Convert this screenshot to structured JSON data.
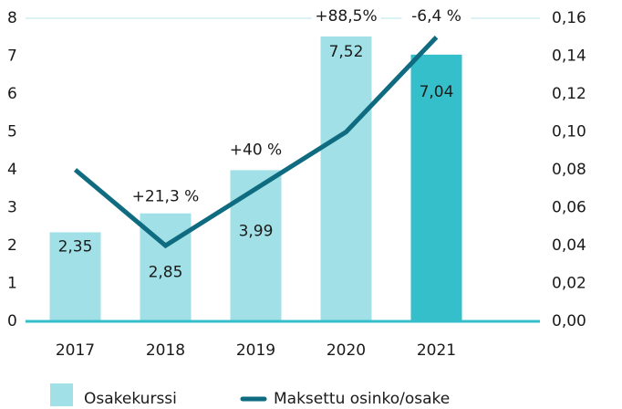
{
  "chart_data": {
    "type": "bar",
    "categories": [
      "2017",
      "2018",
      "2019",
      "2020",
      "2021"
    ],
    "series": [
      {
        "name": "Osakekurssi",
        "type": "bar",
        "color": "#a0e0e6",
        "highlight_color": "#35bfcb",
        "values": [
          2.35,
          2.85,
          3.99,
          7.52,
          7.04
        ],
        "value_labels": [
          "2,35",
          "2,85",
          "3,99",
          "7,52",
          "7,04"
        ]
      },
      {
        "name": "Maksettu osinko/osake",
        "type": "line",
        "axis": "y2",
        "color": "#0e6b80",
        "values": [
          0.08,
          0.04,
          0.07,
          0.1,
          0.15
        ]
      }
    ],
    "changes": [
      null,
      "+21,3 %",
      "+40 %",
      "+88,5%",
      "-6,4 %"
    ],
    "ylim": [
      0,
      8
    ],
    "yticks": [
      0,
      1,
      2,
      3,
      4,
      5,
      6,
      7,
      8
    ],
    "y2lim": [
      0,
      0.16
    ],
    "y2ticks": [
      {
        "value": 0,
        "label": "0,00"
      },
      {
        "value": 0.02,
        "label": "0,02"
      },
      {
        "value": 0.04,
        "label": "0,04"
      },
      {
        "value": 0.06,
        "label": "0,06"
      },
      {
        "value": 0.08,
        "label": "0,08"
      },
      {
        "value": 0.1,
        "label": "0,10"
      },
      {
        "value": 0.12,
        "label": "0,12"
      },
      {
        "value": 0.14,
        "label": "0,14"
      },
      {
        "value": 0.16,
        "label": "0,16"
      }
    ],
    "legend": "bottom"
  }
}
